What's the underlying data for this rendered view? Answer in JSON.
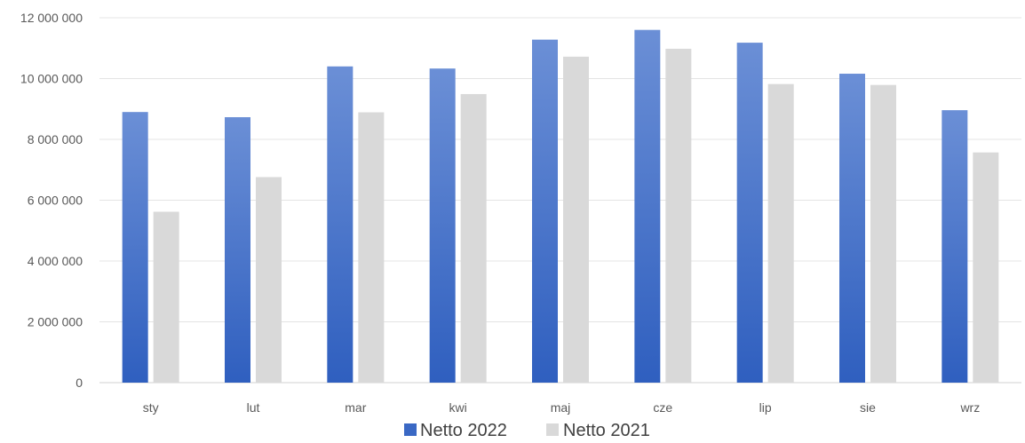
{
  "chart_data": {
    "type": "bar",
    "categories": [
      "sty",
      "lut",
      "mar",
      "kwi",
      "maj",
      "cze",
      "lip",
      "sie",
      "wrz"
    ],
    "series": [
      {
        "name": "Netto 2022",
        "color": "#3a68c4",
        "values": [
          8900000,
          8730000,
          10400000,
          10330000,
          11280000,
          11600000,
          11180000,
          10160000,
          8960000
        ]
      },
      {
        "name": "Netto 2021",
        "color": "#d9d9d9",
        "values": [
          5620000,
          6760000,
          8890000,
          9490000,
          10720000,
          10980000,
          9820000,
          9790000,
          7570000
        ]
      }
    ],
    "ylim": [
      0,
      12000000
    ],
    "yticks": [
      0,
      2000000,
      4000000,
      6000000,
      8000000,
      10000000,
      12000000
    ],
    "ytick_labels": [
      "0",
      "2 000 000",
      "4 000 000",
      "6 000 000",
      "8 000 000",
      "10 000 000",
      "12 000 000"
    ],
    "title": "",
    "xlabel": "",
    "ylabel": "",
    "grid": true,
    "legend_position": "bottom"
  }
}
